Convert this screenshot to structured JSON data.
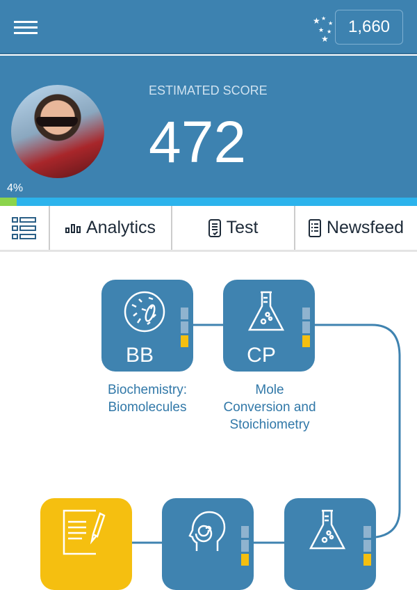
{
  "header": {
    "menu_icon": "hamburger-icon",
    "stars_icon": "stars-icon",
    "points": "1,660"
  },
  "score": {
    "label": "ESTIMATED SCORE",
    "value": "472",
    "progress_label": "4%",
    "progress": 0.04
  },
  "tabs": [
    {
      "icon": "list-icon",
      "label": ""
    },
    {
      "icon": "bar-chart-icon",
      "label": "Analytics"
    },
    {
      "icon": "test-icon",
      "label": "Test"
    },
    {
      "icon": "newsfeed-icon",
      "label": "Newsfeed"
    }
  ],
  "topics": [
    {
      "code": "BB",
      "name_line1": "Biochemistry:",
      "name_line2": "Biomolecules",
      "name_line3": "",
      "icon": "cell-icon",
      "levels": [
        "empty",
        "empty",
        "filled"
      ]
    },
    {
      "code": "CP",
      "name_line1": "Mole",
      "name_line2": "Conversion and",
      "name_line3": "Stoichiometry",
      "icon": "flask-icon",
      "levels": [
        "empty",
        "empty",
        "filled"
      ]
    },
    {
      "code": "",
      "icon": "notepad-pen-icon",
      "color": "#f5bf10"
    },
    {
      "code": "",
      "icon": "head-spiral-icon",
      "levels": [
        "empty",
        "empty",
        "filled"
      ]
    },
    {
      "code": "",
      "icon": "flask-icon",
      "levels": [
        "empty",
        "empty",
        "filled"
      ]
    }
  ],
  "colors": {
    "primary": "#3d82b0",
    "accent_yellow": "#f5bf10",
    "progress_green": "#8bd44c",
    "progress_blue": "#2cb3ec"
  }
}
